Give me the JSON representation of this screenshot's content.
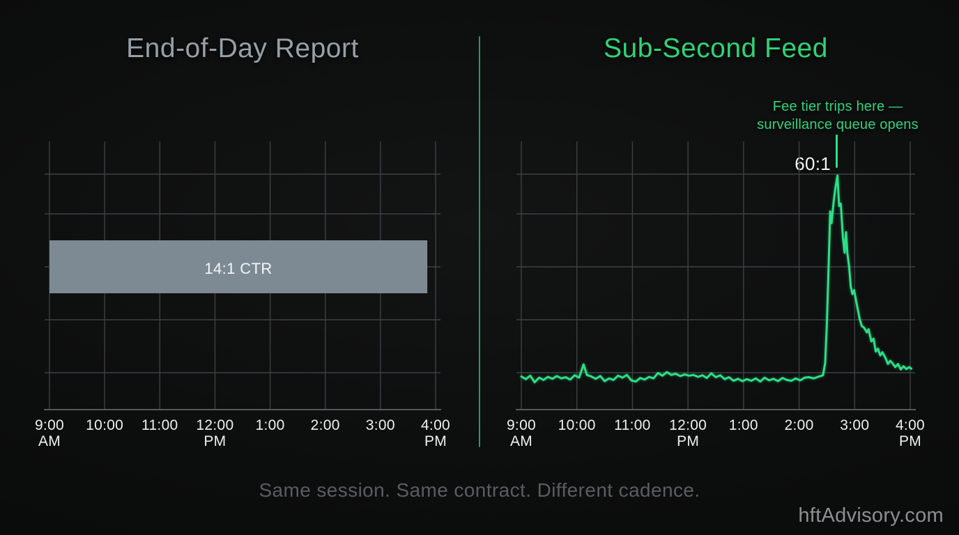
{
  "page": {
    "background": "#0c0d0d"
  },
  "colors": {
    "accent_green": "#2ce087",
    "title_green": "#2ed377",
    "annotation_green": "#2ed37c",
    "divider_green": "#2b9a59",
    "title_gray": "#96a0a9",
    "bar_fill": "#7d8a93",
    "bar_text": "#f5f7f7",
    "grid_line": "#3d4043",
    "axis_line": "#56595b",
    "tick_text": "#eef0f0",
    "peak_text": "#f3f5f5",
    "footer_text": "#575e62",
    "watermark_text": "#8d8f91"
  },
  "left_panel": {
    "title": "End-of-Day Report",
    "chart_data": {
      "type": "bar",
      "orientation": "horizontal-band",
      "label": "14:1 CTR",
      "value": 14,
      "unit": "CTR (cancel-to-trade ratio)",
      "x_axis": "time of day",
      "x_range_hours": [
        9,
        16
      ],
      "bar_span_hours": [
        9,
        15.85
      ],
      "note": "single flat aggregate bar across the whole session"
    }
  },
  "right_panel": {
    "title": "Sub-Second Feed",
    "annotation": {
      "line1": "Fee tier trips here —",
      "line2": "surveillance queue opens"
    },
    "peak_label": "60:1",
    "chart_data": {
      "type": "line",
      "x_axis": "time of day",
      "x_range_hours": [
        9,
        16
      ],
      "y_unit": "CTR (cancel-to-trade ratio)",
      "baseline_value": 8,
      "peak_value": 60,
      "peak_hour": 14.69,
      "points": [
        [
          9.0,
          8.5
        ],
        [
          9.08,
          7.8
        ],
        [
          9.16,
          8.7
        ],
        [
          9.24,
          7.0
        ],
        [
          9.32,
          8.2
        ],
        [
          9.4,
          7.6
        ],
        [
          9.48,
          8.4
        ],
        [
          9.56,
          7.9
        ],
        [
          9.64,
          8.6
        ],
        [
          9.72,
          8.0
        ],
        [
          9.8,
          8.3
        ],
        [
          9.88,
          7.7
        ],
        [
          9.96,
          8.8
        ],
        [
          10.04,
          8.2
        ],
        [
          10.12,
          11.6
        ],
        [
          10.18,
          8.9
        ],
        [
          10.26,
          8.5
        ],
        [
          10.34,
          7.9
        ],
        [
          10.42,
          8.6
        ],
        [
          10.5,
          7.3
        ],
        [
          10.58,
          8.0
        ],
        [
          10.66,
          7.6
        ],
        [
          10.74,
          8.7
        ],
        [
          10.82,
          8.2
        ],
        [
          10.9,
          8.9
        ],
        [
          10.98,
          7.5
        ],
        [
          11.06,
          7.2
        ],
        [
          11.14,
          8.1
        ],
        [
          11.22,
          7.7
        ],
        [
          11.3,
          8.4
        ],
        [
          11.38,
          8.0
        ],
        [
          11.46,
          9.4
        ],
        [
          11.54,
          8.7
        ],
        [
          11.62,
          9.6
        ],
        [
          11.7,
          8.9
        ],
        [
          11.78,
          9.2
        ],
        [
          11.86,
          8.6
        ],
        [
          11.94,
          9.0
        ],
        [
          12.02,
          8.7
        ],
        [
          12.1,
          8.9
        ],
        [
          12.18,
          8.4
        ],
        [
          12.26,
          8.8
        ],
        [
          12.34,
          8.1
        ],
        [
          12.42,
          9.3
        ],
        [
          12.5,
          8.3
        ],
        [
          12.58,
          8.8
        ],
        [
          12.66,
          7.8
        ],
        [
          12.74,
          8.3
        ],
        [
          12.82,
          7.4
        ],
        [
          12.9,
          7.9
        ],
        [
          12.98,
          7.3
        ],
        [
          13.06,
          7.8
        ],
        [
          13.14,
          7.4
        ],
        [
          13.22,
          8.0
        ],
        [
          13.3,
          7.2
        ],
        [
          13.38,
          8.2
        ],
        [
          13.46,
          7.5
        ],
        [
          13.54,
          7.9
        ],
        [
          13.62,
          7.3
        ],
        [
          13.7,
          8.1
        ],
        [
          13.78,
          7.6
        ],
        [
          13.86,
          7.4
        ],
        [
          13.94,
          8.0
        ],
        [
          14.02,
          7.5
        ],
        [
          14.1,
          8.2
        ],
        [
          14.18,
          8.3
        ],
        [
          14.26,
          8.0
        ],
        [
          14.34,
          8.4
        ],
        [
          14.43,
          8.8
        ],
        [
          14.47,
          12
        ],
        [
          14.5,
          22
        ],
        [
          14.53,
          36
        ],
        [
          14.56,
          50.8
        ],
        [
          14.585,
          47.8
        ],
        [
          14.62,
          53
        ],
        [
          14.65,
          56.5
        ],
        [
          14.69,
          60
        ],
        [
          14.72,
          52.2
        ],
        [
          14.75,
          52.8
        ],
        [
          14.79,
          44
        ],
        [
          14.82,
          40.2
        ],
        [
          14.845,
          45.5
        ],
        [
          14.87,
          40
        ],
        [
          14.9,
          36.8
        ],
        [
          14.93,
          31.5
        ],
        [
          14.96,
          29.6
        ],
        [
          14.99,
          30.6
        ],
        [
          15.04,
          26.8
        ],
        [
          15.09,
          23.2
        ],
        [
          15.13,
          21.4
        ],
        [
          15.17,
          21.0
        ],
        [
          15.22,
          19.8
        ],
        [
          15.25,
          20.6
        ],
        [
          15.3,
          17.5
        ],
        [
          15.34,
          18.2
        ],
        [
          15.38,
          14.9
        ],
        [
          15.42,
          15.6
        ],
        [
          15.46,
          13.9
        ],
        [
          15.5,
          14.7
        ],
        [
          15.55,
          13.4
        ],
        [
          15.6,
          11.7
        ],
        [
          15.64,
          12.5
        ],
        [
          15.68,
          11.9
        ],
        [
          15.73,
          10.9
        ],
        [
          15.78,
          11.7
        ],
        [
          15.83,
          10.3
        ],
        [
          15.88,
          11.1
        ],
        [
          15.93,
          10.4
        ],
        [
          15.98,
          10.9
        ],
        [
          16.02,
          10.5
        ]
      ]
    }
  },
  "axis": {
    "categories": [
      {
        "l1": "9:00",
        "l2": "AM"
      },
      {
        "l1": "10:00",
        "l2": ""
      },
      {
        "l1": "11:00",
        "l2": ""
      },
      {
        "l1": "12:00",
        "l2": "PM"
      },
      {
        "l1": "1:00",
        "l2": ""
      },
      {
        "l1": "2:00",
        "l2": ""
      },
      {
        "l1": "3:00",
        "l2": ""
      },
      {
        "l1": "4:00",
        "l2": "PM"
      }
    ]
  },
  "footer": {
    "caption": "Same session. Same contract. Different cadence.",
    "watermark": "hftAdvisory.com"
  }
}
